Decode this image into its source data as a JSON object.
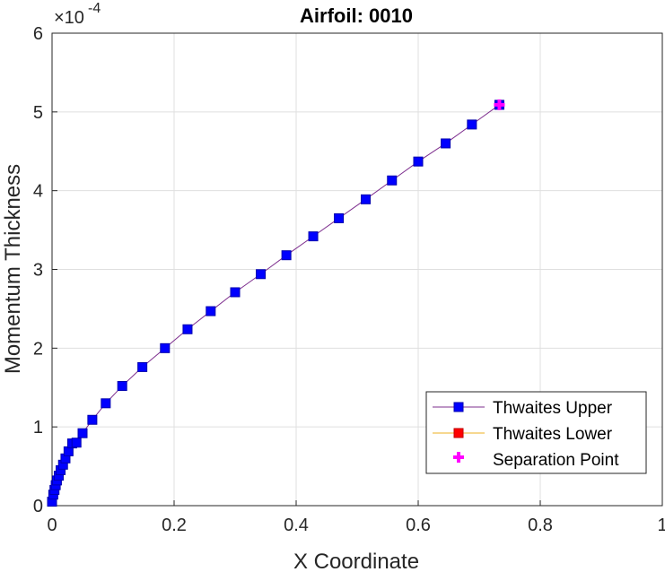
{
  "chart_data": {
    "type": "line",
    "title": "Airfoil: 0010",
    "xlabel": "X Coordinate",
    "ylabel": "Momentum Thickness",
    "xlim": [
      0,
      1
    ],
    "ylim": [
      0,
      6
    ],
    "y_exponent": "-4",
    "x_ticks": [
      "0",
      "0.2",
      "0.4",
      "0.6",
      "0.8",
      "1"
    ],
    "y_ticks": [
      "0",
      "1",
      "2",
      "3",
      "4",
      "5",
      "6"
    ],
    "grid": true,
    "legend_position": "bottom-right",
    "series": [
      {
        "name": "Thwaites Upper",
        "marker": "square",
        "line_color": "#7e2f8e",
        "marker_color": "#0000ff",
        "x": [
          0.0,
          0.002,
          0.004,
          0.006,
          0.008,
          0.011,
          0.014,
          0.018,
          0.022,
          0.027,
          0.033,
          0.04,
          0.05,
          0.066,
          0.088,
          0.115,
          0.148,
          0.185,
          0.222,
          0.26,
          0.3,
          0.342,
          0.384,
          0.428,
          0.47,
          0.514,
          0.557,
          0.6,
          0.645,
          0.688,
          0.733
        ],
        "y": [
          0.05,
          0.14,
          0.2,
          0.26,
          0.32,
          0.38,
          0.45,
          0.52,
          0.6,
          0.69,
          0.79,
          0.8,
          0.92,
          1.09,
          1.3,
          1.52,
          1.76,
          2.0,
          2.24,
          2.47,
          2.71,
          2.94,
          3.18,
          3.42,
          3.65,
          3.89,
          4.13,
          4.37,
          4.6,
          4.84,
          5.09
        ]
      },
      {
        "name": "Thwaites Lower",
        "marker": "square",
        "line_color": "#edb120",
        "marker_color": "#ff0000",
        "x": [],
        "y": []
      },
      {
        "name": "Separation Point",
        "marker": "plus",
        "marker_color": "#ff00ff",
        "x": [
          0.733
        ],
        "y": [
          5.09
        ]
      }
    ]
  }
}
